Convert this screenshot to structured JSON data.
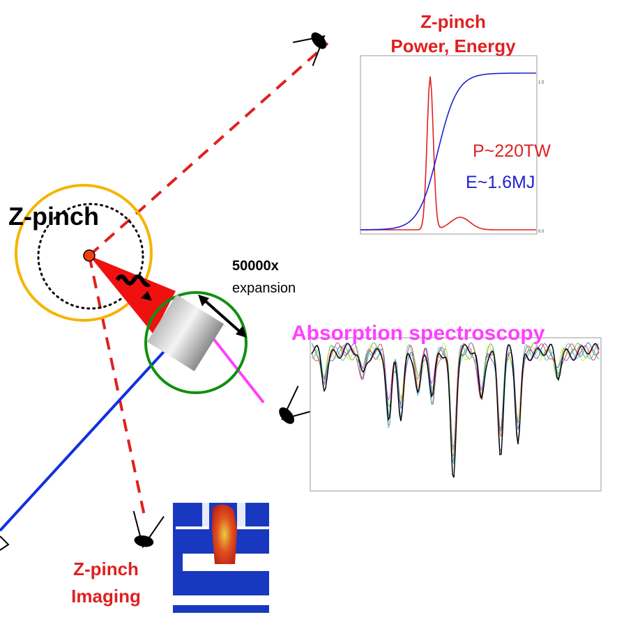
{
  "top_label": {
    "line1": "Z-pinch",
    "line2": "Power, Energy"
  },
  "power_plot": {
    "power": "P~220TW",
    "energy": "E~1.6MJ",
    "axis_labels": [
      "1.5",
      "0.0"
    ]
  },
  "source_label": "Z-pinch",
  "expansion": {
    "factor": "50000x",
    "label": "expansion"
  },
  "spectroscopy_label": "Absorption spectroscopy",
  "imaging_label": {
    "line1": "Z-pinch",
    "line2": "Imaging"
  }
}
